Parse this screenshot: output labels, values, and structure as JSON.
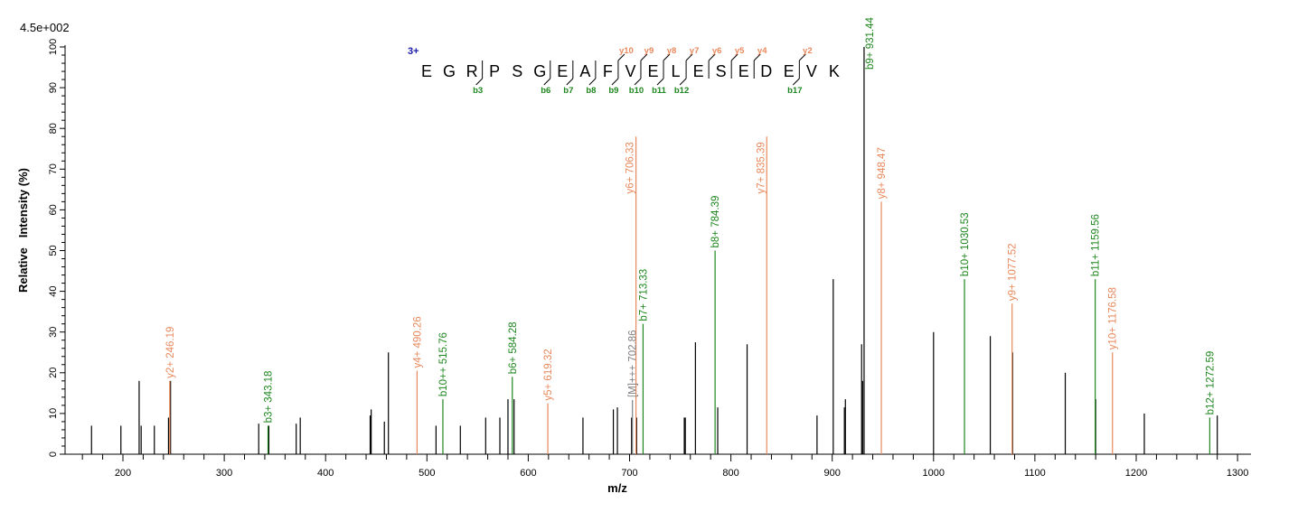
{
  "chart_data": {
    "type": "bar",
    "subtype": "mass-spectrum-stick",
    "scale_label": "4.5e+002",
    "xlabel": "m/z",
    "ylabel": "Relative   Intensity (%)",
    "xlim": [
      143,
      1313
    ],
    "ylim": [
      0,
      100
    ],
    "x_ticks": [
      200,
      300,
      400,
      500,
      600,
      700,
      800,
      900,
      1000,
      1100,
      1200,
      1300
    ],
    "y_ticks": [
      0,
      10,
      20,
      30,
      40,
      50,
      60,
      70,
      80,
      90,
      100
    ],
    "grid": false,
    "colors": {
      "b_ion": "#1e861e",
      "y_ion": "#e8885c",
      "precursor": "#808080",
      "unassigned": "#000000",
      "charge": "#1a1aa8"
    },
    "sequence": {
      "charge": "3+",
      "residues": [
        "E",
        "G",
        "R",
        "P",
        "S",
        "G",
        "E",
        "A",
        "F",
        "V",
        "E",
        "L",
        "E",
        "S",
        "E",
        "D",
        "E",
        "V",
        "K"
      ],
      "b_breaks": [
        {
          "n": 3,
          "label": "b3"
        },
        {
          "n": 6,
          "label": "b6"
        },
        {
          "n": 7,
          "label": "b7"
        },
        {
          "n": 8,
          "label": "b8"
        },
        {
          "n": 9,
          "label": "b9"
        },
        {
          "n": 10,
          "label": "b10"
        },
        {
          "n": 11,
          "label": "b11"
        },
        {
          "n": 12,
          "label": "b12"
        },
        {
          "n": 17,
          "label": "b17"
        }
      ],
      "y_breaks": [
        {
          "n": 10,
          "label": "y10"
        },
        {
          "n": 9,
          "label": "y9"
        },
        {
          "n": 8,
          "label": "y8"
        },
        {
          "n": 7,
          "label": "y7"
        },
        {
          "n": 6,
          "label": "y6"
        },
        {
          "n": 5,
          "label": "y5"
        },
        {
          "n": 4,
          "label": "y4"
        },
        {
          "n": 2,
          "label": "y2"
        }
      ]
    },
    "annotated_peaks": [
      {
        "label": "y2+ 246.19",
        "mz": 246.19,
        "intensity": 18,
        "ion": "y"
      },
      {
        "label": "b3+ 343.18",
        "mz": 343.18,
        "intensity": 7,
        "ion": "b"
      },
      {
        "label": "y4+ 490.26",
        "mz": 490.26,
        "intensity": 20.5,
        "ion": "y"
      },
      {
        "label": "b10++ 515.76",
        "mz": 515.76,
        "intensity": 13.5,
        "ion": "b"
      },
      {
        "label": "b6+ 584.28",
        "mz": 584.28,
        "intensity": 19,
        "ion": "b"
      },
      {
        "label": "y5+ 619.32",
        "mz": 619.32,
        "intensity": 12.5,
        "ion": "y"
      },
      {
        "label": "[M]+++ 702.86",
        "mz": 702.86,
        "intensity": 13.3,
        "ion": "precursor"
      },
      {
        "label": "y6+ 706.33",
        "mz": 706.33,
        "intensity": 78,
        "ion": "y"
      },
      {
        "label": "b7+ 713.33",
        "mz": 713.33,
        "intensity": 32,
        "ion": "b"
      },
      {
        "label": "b8+ 784.39",
        "mz": 784.39,
        "intensity": 50,
        "ion": "b"
      },
      {
        "label": "y7+ 835.39",
        "mz": 835.39,
        "intensity": 78,
        "ion": "y"
      },
      {
        "label": "b9+ 931.44",
        "mz": 931.44,
        "intensity": 100,
        "ion": "b"
      },
      {
        "label": "y8+ 948.47",
        "mz": 948.47,
        "intensity": 62,
        "ion": "y"
      },
      {
        "label": "b10+ 1030.53",
        "mz": 1030.53,
        "intensity": 43,
        "ion": "b"
      },
      {
        "label": "y9+ 1077.52",
        "mz": 1077.52,
        "intensity": 37,
        "ion": "y"
      },
      {
        "label": "b11+ 1159.56",
        "mz": 1159.56,
        "intensity": 43,
        "ion": "b"
      },
      {
        "label": "y10+ 1176.58",
        "mz": 1176.58,
        "intensity": 25,
        "ion": "y"
      },
      {
        "label": "b12+ 1272.59",
        "mz": 1272.59,
        "intensity": 9,
        "ion": "b"
      }
    ],
    "unassigned_peaks": [
      {
        "mz": 169,
        "intensity": 7
      },
      {
        "mz": 198,
        "intensity": 7
      },
      {
        "mz": 216,
        "intensity": 18
      },
      {
        "mz": 218,
        "intensity": 7
      },
      {
        "mz": 231,
        "intensity": 7
      },
      {
        "mz": 245,
        "intensity": 9
      },
      {
        "mz": 247,
        "intensity": 18
      },
      {
        "mz": 334,
        "intensity": 7.5
      },
      {
        "mz": 344,
        "intensity": 7
      },
      {
        "mz": 371,
        "intensity": 7.5
      },
      {
        "mz": 375,
        "intensity": 9
      },
      {
        "mz": 444,
        "intensity": 9.5
      },
      {
        "mz": 445,
        "intensity": 11
      },
      {
        "mz": 458,
        "intensity": 8
      },
      {
        "mz": 462,
        "intensity": 25
      },
      {
        "mz": 509,
        "intensity": 7
      },
      {
        "mz": 533,
        "intensity": 7
      },
      {
        "mz": 558,
        "intensity": 9
      },
      {
        "mz": 572,
        "intensity": 9
      },
      {
        "mz": 580,
        "intensity": 13.5
      },
      {
        "mz": 586,
        "intensity": 13.5
      },
      {
        "mz": 654,
        "intensity": 9
      },
      {
        "mz": 684,
        "intensity": 11
      },
      {
        "mz": 688,
        "intensity": 11.5
      },
      {
        "mz": 702,
        "intensity": 9
      },
      {
        "mz": 707,
        "intensity": 9
      },
      {
        "mz": 754,
        "intensity": 9
      },
      {
        "mz": 755,
        "intensity": 9
      },
      {
        "mz": 765,
        "intensity": 27.5
      },
      {
        "mz": 787,
        "intensity": 11.5
      },
      {
        "mz": 816,
        "intensity": 27
      },
      {
        "mz": 885,
        "intensity": 9.5
      },
      {
        "mz": 901,
        "intensity": 43
      },
      {
        "mz": 912,
        "intensity": 11.5
      },
      {
        "mz": 913,
        "intensity": 13.5
      },
      {
        "mz": 929,
        "intensity": 27
      },
      {
        "mz": 930,
        "intensity": 18
      },
      {
        "mz": 1000,
        "intensity": 30
      },
      {
        "mz": 1056,
        "intensity": 29
      },
      {
        "mz": 1078,
        "intensity": 25
      },
      {
        "mz": 1130,
        "intensity": 20
      },
      {
        "mz": 1160,
        "intensity": 13.5
      },
      {
        "mz": 1208,
        "intensity": 10
      },
      {
        "mz": 1280,
        "intensity": 9.5
      }
    ]
  }
}
